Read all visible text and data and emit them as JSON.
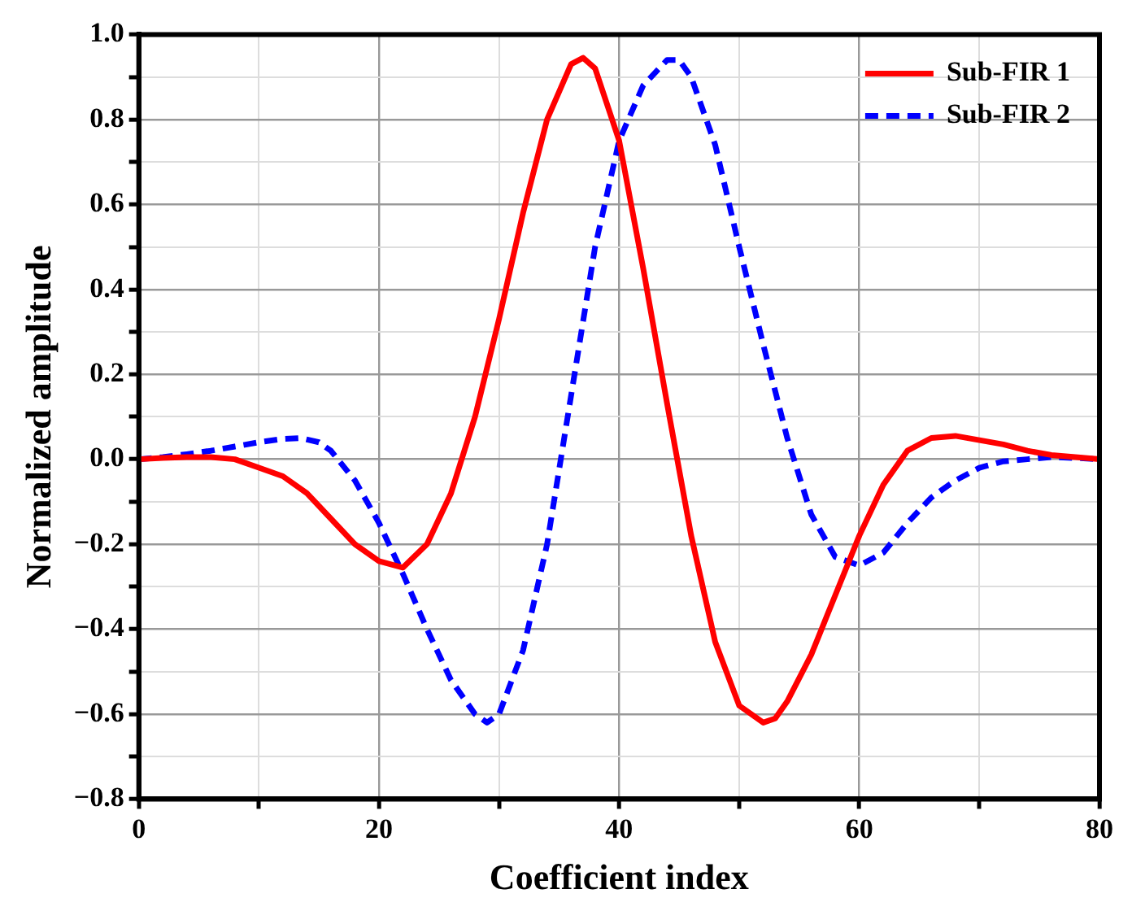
{
  "chart_data": {
    "type": "line",
    "xlabel": "Coefficient index",
    "ylabel": "Normalized amplitude",
    "xlim": [
      0,
      80
    ],
    "ylim": [
      -0.8,
      1.0
    ],
    "xticks": [
      0,
      {
        "value": 10,
        "label": null
      },
      20,
      {
        "value": 30,
        "label": null
      },
      40,
      {
        "value": 50,
        "label": null
      },
      60,
      {
        "value": 70,
        "label": null
      },
      80
    ],
    "yticks": [
      {
        "value": -0.8,
        "label": "−0.8"
      },
      {
        "value": -0.7,
        "label": null
      },
      {
        "value": -0.6,
        "label": "−0.6"
      },
      {
        "value": -0.5,
        "label": null
      },
      {
        "value": -0.4,
        "label": "−0.4"
      },
      {
        "value": -0.3,
        "label": null
      },
      {
        "value": -0.2,
        "label": "−0.2"
      },
      {
        "value": -0.1,
        "label": null
      },
      {
        "value": 0,
        "label": "0.0"
      },
      {
        "value": 0.1,
        "label": null
      },
      {
        "value": 0.2,
        "label": "0.2"
      },
      {
        "value": 0.3,
        "label": null
      },
      {
        "value": 0.4,
        "label": "0.4"
      },
      {
        "value": 0.5,
        "label": null
      },
      {
        "value": 0.6,
        "label": "0.6"
      },
      {
        "value": 0.7,
        "label": null
      },
      {
        "value": 0.8,
        "label": "0.8"
      },
      {
        "value": 0.9,
        "label": null
      },
      {
        "value": 1,
        "label": "1.0"
      }
    ],
    "grid": true,
    "legend": "top right",
    "marker": "none",
    "series": [
      {
        "name": "Sub-FIR 1",
        "color": "#ff0000",
        "line_style": "solid",
        "x": [
          0,
          2,
          4,
          6,
          8,
          10,
          12,
          14,
          16,
          18,
          20,
          22,
          24,
          26,
          28,
          30,
          32,
          34,
          36,
          37,
          38,
          40,
          42,
          44,
          46,
          48,
          50,
          52,
          53,
          54,
          56,
          58,
          60,
          62,
          64,
          66,
          68,
          70,
          72,
          74,
          76,
          78,
          80
        ],
        "values": [
          0,
          0.003,
          0.005,
          0.005,
          0,
          -0.02,
          -0.04,
          -0.08,
          -0.14,
          -0.2,
          -0.24,
          -0.255,
          -0.2,
          -0.08,
          0.1,
          0.33,
          0.58,
          0.8,
          0.93,
          0.945,
          0.92,
          0.75,
          0.45,
          0.13,
          -0.18,
          -0.43,
          -0.58,
          -0.62,
          -0.61,
          -0.57,
          -0.46,
          -0.32,
          -0.18,
          -0.06,
          0.02,
          0.05,
          0.055,
          0.045,
          0.035,
          0.02,
          0.01,
          0.005,
          0
        ]
      },
      {
        "name": "Sub-FIR 2",
        "color": "#0000ff",
        "line_style": "dashed",
        "x": [
          0,
          2,
          4,
          6,
          8,
          10,
          12,
          13.5,
          15,
          16,
          18,
          20,
          22,
          24,
          26,
          28,
          29,
          30,
          32,
          34,
          36,
          38,
          40,
          42,
          44,
          45,
          46,
          48,
          50,
          52,
          54,
          56,
          58,
          60,
          62,
          64,
          66,
          68,
          70,
          72,
          74,
          76,
          78,
          80
        ],
        "values": [
          0,
          0.005,
          0.012,
          0.02,
          0.03,
          0.04,
          0.048,
          0.05,
          0.04,
          0.02,
          -0.05,
          -0.15,
          -0.27,
          -0.4,
          -0.52,
          -0.6,
          -0.62,
          -0.6,
          -0.45,
          -0.2,
          0.15,
          0.5,
          0.75,
          0.88,
          0.94,
          0.94,
          0.9,
          0.74,
          0.5,
          0.27,
          0.05,
          -0.13,
          -0.23,
          -0.25,
          -0.22,
          -0.15,
          -0.09,
          -0.05,
          -0.02,
          -0.005,
          0,
          0.005,
          0.003,
          0
        ]
      }
    ]
  }
}
